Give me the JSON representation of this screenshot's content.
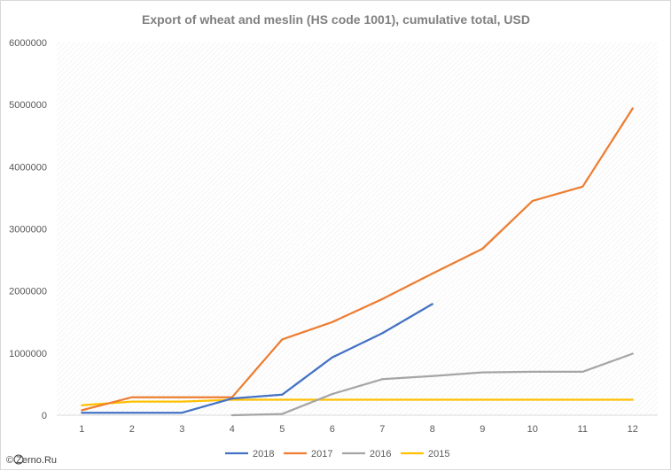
{
  "chart_data": {
    "type": "line",
    "title": "Export of wheat and meslin (HS code 1001), cumulative total, USD",
    "xlabel": "",
    "ylabel": "",
    "categories": [
      "1",
      "2",
      "3",
      "4",
      "5",
      "6",
      "7",
      "8",
      "9",
      "10",
      "11",
      "12"
    ],
    "ylim": [
      0,
      6000000
    ],
    "yticks": [
      "0",
      "1000000",
      "2000000",
      "3000000",
      "4000000",
      "5000000",
      "6000000"
    ],
    "grid": false,
    "legend_position": "bottom",
    "series": [
      {
        "name": "2018",
        "color": "#4472c4",
        "values": [
          40000,
          40000,
          40000,
          270000,
          330000,
          930000,
          1320000,
          1790000,
          null,
          null,
          null,
          null
        ]
      },
      {
        "name": "2017",
        "color": "#ed7d31",
        "values": [
          80000,
          290000,
          290000,
          290000,
          1220000,
          1500000,
          1870000,
          2280000,
          2680000,
          3450000,
          3680000,
          4940000
        ]
      },
      {
        "name": "2016",
        "color": "#a5a5a5",
        "values": [
          null,
          null,
          null,
          0,
          20000,
          340000,
          580000,
          630000,
          690000,
          700000,
          700000,
          990000
        ]
      },
      {
        "name": "2015",
        "color": "#ffc000",
        "values": [
          160000,
          220000,
          220000,
          250000,
          250000,
          250000,
          250000,
          250000,
          250000,
          250000,
          250000,
          250000
        ]
      }
    ]
  },
  "credit": "© Zerno.Ru"
}
